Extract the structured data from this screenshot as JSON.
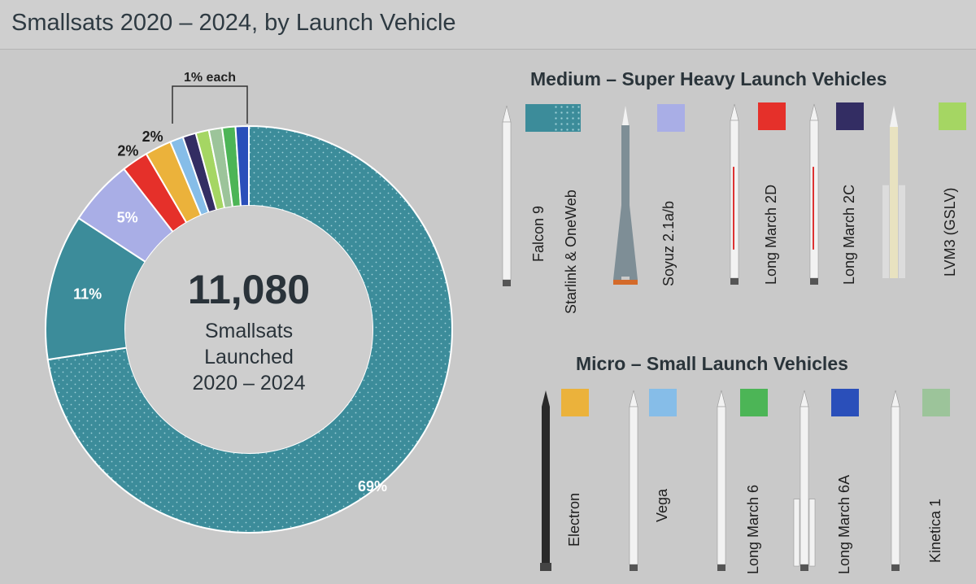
{
  "header": {
    "title": "Smallsats 2020 – 2024, by Launch Vehicle"
  },
  "center": {
    "count": "11,080",
    "line1": "Smallsats",
    "line2": "Launched",
    "line3": "2020 – 2024"
  },
  "annotation": {
    "each_label": "1% each"
  },
  "chart_data": {
    "type": "pie",
    "donut": true,
    "title": "Smallsats 2020 – 2024, by Launch Vehicle",
    "start_angle_deg": 0,
    "slices": [
      {
        "label": "Starlink & OneWeb",
        "value": 69,
        "display": "69%",
        "color": "#3c8c9a",
        "pattern": "dots"
      },
      {
        "label": "Falcon 9",
        "value": 11,
        "display": "11%",
        "color": "#3c8c9a"
      },
      {
        "label": "Soyuz 2.1a/b",
        "value": 5,
        "display": "5%",
        "color": "#a9aee6"
      },
      {
        "label": "Long March 2D",
        "value": 2,
        "display": "2%",
        "color": "#e5302a"
      },
      {
        "label": "Electron",
        "value": 2,
        "display": "2%",
        "color": "#ebb23b"
      },
      {
        "label": "Vega",
        "value": 1,
        "display": "",
        "color": "#86bde8"
      },
      {
        "label": "Long March 2C",
        "value": 1,
        "display": "",
        "color": "#332d63"
      },
      {
        "label": "LVM3 (GSLV)",
        "value": 1,
        "display": "",
        "color": "#a5d663"
      },
      {
        "label": "Kinetica 1",
        "value": 1,
        "display": "",
        "color": "#9cc49a"
      },
      {
        "label": "Long March 6",
        "value": 1,
        "display": "",
        "color": "#4cb556"
      },
      {
        "label": "Long March 6A",
        "value": 1,
        "display": "",
        "color": "#2a4fba"
      }
    ]
  },
  "legend": {
    "medium": {
      "title": "Medium – Super Heavy Launch Vehicles",
      "items": [
        {
          "label": "Falcon 9",
          "color": "#3c8c9a",
          "rocket": "falcon9-rocket-icon"
        },
        {
          "label": "Starlink & OneWeb",
          "color": "#3c8c9a",
          "pattern": "dots"
        },
        {
          "label": "Soyuz 2.1a/b",
          "color": "#a9aee6",
          "rocket": "soyuz-rocket-icon"
        },
        {
          "label": "Long March 2D",
          "color": "#e5302a",
          "rocket": "long-march-2d-rocket-icon"
        },
        {
          "label": "Long March 2C",
          "color": "#332d63",
          "rocket": "long-march-2c-rocket-icon"
        },
        {
          "label": "LVM3 (GSLV)",
          "color": "#a5d663",
          "rocket": "lvm3-rocket-icon"
        }
      ]
    },
    "micro": {
      "title": "Micro – Small Launch Vehicles",
      "items": [
        {
          "label": "Electron",
          "color": "#ebb23b",
          "rocket": "electron-rocket-icon"
        },
        {
          "label": "Vega",
          "color": "#86bde8",
          "rocket": "vega-rocket-icon"
        },
        {
          "label": "Long March 6",
          "color": "#4cb556",
          "rocket": "long-march-6-rocket-icon"
        },
        {
          "label": "Long March 6A",
          "color": "#2a4fba",
          "rocket": "long-march-6a-rocket-icon"
        },
        {
          "label": "Kinetica 1",
          "color": "#9cc49a",
          "rocket": "kinetica-1-rocket-icon"
        }
      ]
    }
  }
}
